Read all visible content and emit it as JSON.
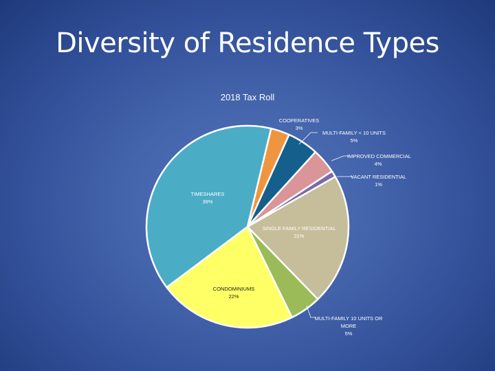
{
  "slide": {
    "title": "Diversity of Residence Types"
  },
  "chart_data": {
    "type": "pie",
    "title": "2018 Tax Roll",
    "start_angle_deg": 13.5,
    "direction": "clockwise",
    "slices": [
      {
        "label": "COOPERATIVES",
        "value": 3,
        "pct_label": "3%",
        "color": "#f0953f"
      },
      {
        "label": "MULTI-FAMILY < 10 UNITS",
        "value": 5,
        "pct_label": "5%",
        "color": "#155f8c"
      },
      {
        "label": "IMPROVED COMMERCIAL",
        "value": 4,
        "pct_label": "4%",
        "color": "#d99597"
      },
      {
        "label": "VACANT RESIDENTIAL",
        "value": 1,
        "pct_label": "1%",
        "color": "#7b6aa6"
      },
      {
        "label": "SINGLE FAMILY RESIDENTIAL",
        "value": 21,
        "pct_label": "21%",
        "color": "#c6bd9a"
      },
      {
        "label": "MULTI-FAMILY 10 UNITS OR MORE",
        "value": 5,
        "pct_label": "5%",
        "color": "#9bbb59"
      },
      {
        "label": "CONDOMINIUMS",
        "value": 22,
        "pct_label": "22%",
        "color": "#ffff66"
      },
      {
        "label": "TIMESHARES",
        "value": 39,
        "pct_label": "39%",
        "color": "#4bacc6"
      }
    ],
    "legend": "none (data labels with leader lines)"
  },
  "labels": {
    "cooperatives": {
      "name": "COOPERATIVES",
      "pct": "3%"
    },
    "multi_small": {
      "name": "MULTI-FAMILY < 10 UNITS",
      "pct": "5%"
    },
    "improved_commercial": {
      "name": "IMPROVED COMMERCIAL",
      "pct": "4%"
    },
    "vacant_residential": {
      "name": "VACANT RESIDENTIAL",
      "pct": "1%"
    },
    "single_family": {
      "name": "SINGLE FAMILY RESIDENTIAL",
      "pct": "21%"
    },
    "multi_large": {
      "name1": "MULTI-FAMILY 10 UNITS OR",
      "name2": "MORE",
      "pct": "5%"
    },
    "condominiums": {
      "name": "CONDOMINIUMS",
      "pct": "22%"
    },
    "timeshares": {
      "name": "TIMESHARES",
      "pct": "39%"
    }
  }
}
